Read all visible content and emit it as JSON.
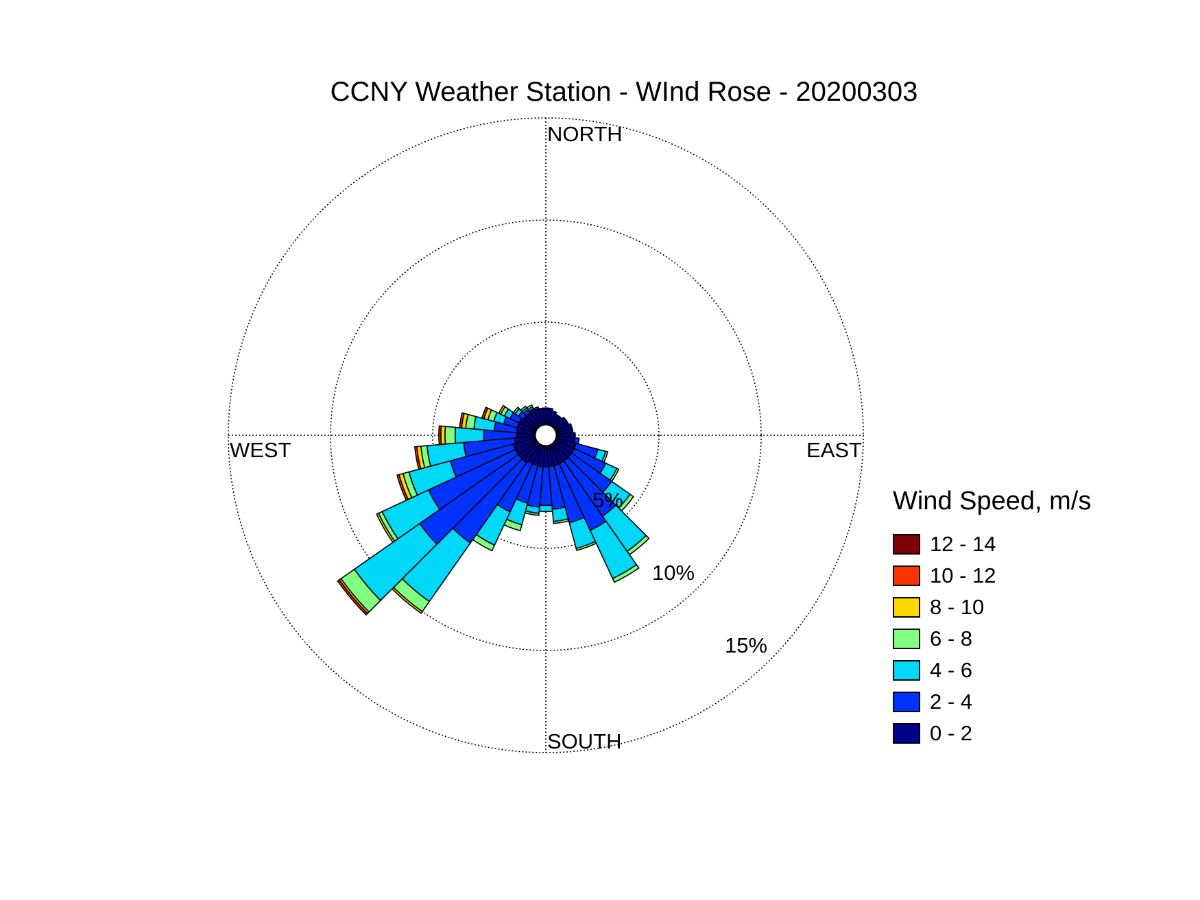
{
  "chart_data": {
    "type": "windrose",
    "title": "CCNY Weather Station - WInd Rose - 20200303",
    "direction_labels": {
      "north": "NORTH",
      "east": "EAST",
      "south": "SOUTH",
      "west": "WEST"
    },
    "radial_ticks": [
      5,
      10,
      15
    ],
    "radial_tick_labels": [
      "5%",
      "10%",
      "15%"
    ],
    "rmax": 15,
    "grid": true,
    "legend": {
      "title": "Wind Speed, m/s",
      "placement": "right",
      "bins": [
        {
          "label": "12 - 14",
          "color": "#800000"
        },
        {
          "label": "10 - 12",
          "color": "#ff3300"
        },
        {
          "label": "8 - 10",
          "color": "#ffd700"
        },
        {
          "label": "6 - 8",
          "color": "#80ff80"
        },
        {
          "label": "4 - 6",
          "color": "#00d8f8"
        },
        {
          "label": "2 - 4",
          "color": "#0033ff"
        },
        {
          "label": "0 - 2",
          "color": "#00008b"
        }
      ]
    },
    "bin_order_inner_to_outer": [
      "0 - 2",
      "2 - 4",
      "4 - 6",
      "6 - 8",
      "8 - 10",
      "10 - 12",
      "12 - 14"
    ],
    "sector_width_deg": 10,
    "sectors": [
      {
        "dir": 0,
        "values": [
          0.8,
          0,
          0,
          0,
          0,
          0,
          0
        ]
      },
      {
        "dir": 10,
        "values": [
          0.8,
          0,
          0,
          0,
          0,
          0,
          0
        ]
      },
      {
        "dir": 20,
        "values": [
          0.7,
          0,
          0,
          0,
          0,
          0,
          0
        ]
      },
      {
        "dir": 30,
        "values": [
          0.6,
          0,
          0,
          0,
          0,
          0,
          0
        ]
      },
      {
        "dir": 40,
        "values": [
          0.6,
          0,
          0,
          0,
          0,
          0,
          0
        ]
      },
      {
        "dir": 50,
        "values": [
          0.7,
          0,
          0,
          0,
          0,
          0,
          0
        ]
      },
      {
        "dir": 60,
        "values": [
          0.7,
          0,
          0,
          0,
          0,
          0,
          0
        ]
      },
      {
        "dir": 70,
        "values": [
          0.8,
          0,
          0,
          0,
          0,
          0,
          0
        ]
      },
      {
        "dir": 80,
        "values": [
          0.8,
          0,
          0,
          0,
          0,
          0,
          0
        ]
      },
      {
        "dir": 90,
        "values": [
          0.9,
          0,
          0,
          0,
          0,
          0,
          0
        ]
      },
      {
        "dir": 100,
        "values": [
          0.9,
          0.2,
          0,
          0,
          0,
          0,
          0
        ]
      },
      {
        "dir": 110,
        "values": [
          1.0,
          1.1,
          0.4,
          0.1,
          0,
          0,
          0
        ]
      },
      {
        "dir": 120,
        "values": [
          1.0,
          1.7,
          0.6,
          0.1,
          0,
          0,
          0
        ]
      },
      {
        "dir": 130,
        "values": [
          1.0,
          2.4,
          1.1,
          0.2,
          0,
          0,
          0
        ]
      },
      {
        "dir": 140,
        "values": [
          1.0,
          3.3,
          2.1,
          0.2,
          0,
          0,
          0
        ]
      },
      {
        "dir": 150,
        "values": [
          1.0,
          3.6,
          2.6,
          0.2,
          0,
          0,
          0
        ]
      },
      {
        "dir": 160,
        "values": [
          1.0,
          2.9,
          1.3,
          0.1,
          0,
          0,
          0
        ]
      },
      {
        "dir": 170,
        "values": [
          1.0,
          2.1,
          0.6,
          0.1,
          0,
          0,
          0
        ]
      },
      {
        "dir": 180,
        "values": [
          1.0,
          1.9,
          0.3,
          0,
          0,
          0,
          0
        ]
      },
      {
        "dir": 190,
        "values": [
          1.0,
          2.0,
          0.3,
          0.1,
          0,
          0,
          0
        ]
      },
      {
        "dir": 200,
        "values": [
          1.0,
          1.9,
          1.1,
          0.3,
          0,
          0,
          0
        ]
      },
      {
        "dir": 210,
        "values": [
          1.0,
          2.6,
          1.8,
          0.3,
          0,
          0,
          0
        ]
      },
      {
        "dir": 220,
        "values": [
          1.1,
          4.8,
          3.5,
          0.6,
          0.1,
          0,
          0
        ]
      },
      {
        "dir": 230,
        "values": [
          1.1,
          5.9,
          3.9,
          0.8,
          0.1,
          0.1,
          0
        ]
      },
      {
        "dir": 240,
        "values": [
          1.1,
          4.7,
          2.5,
          0.2,
          0.1,
          0,
          0
        ]
      },
      {
        "dir": 250,
        "values": [
          1.1,
          3.2,
          2.1,
          0.3,
          0.2,
          0.1,
          0
        ]
      },
      {
        "dir": 260,
        "values": [
          1.0,
          2.5,
          1.8,
          0.3,
          0.2,
          0.1,
          0
        ]
      },
      {
        "dir": 270,
        "values": [
          0.9,
          1.6,
          1.4,
          0.5,
          0.2,
          0.1,
          0
        ]
      },
      {
        "dir": 280,
        "values": [
          0.9,
          1.1,
          1.0,
          0.4,
          0.2,
          0.1,
          0
        ]
      },
      {
        "dir": 290,
        "values": [
          0.9,
          0.7,
          0.5,
          0.3,
          0.2,
          0.1,
          0
        ]
      },
      {
        "dir": 300,
        "values": [
          0.9,
          0.5,
          0.3,
          0.2,
          0.1,
          0,
          0
        ]
      },
      {
        "dir": 310,
        "values": [
          0.8,
          0.3,
          0.2,
          0.1,
          0,
          0,
          0
        ]
      },
      {
        "dir": 320,
        "values": [
          0.8,
          0.2,
          0.1,
          0.1,
          0,
          0,
          0
        ]
      },
      {
        "dir": 330,
        "values": [
          0.8,
          0.1,
          0.1,
          0.1,
          0,
          0,
          0
        ]
      },
      {
        "dir": 340,
        "values": [
          0.8,
          0.1,
          0,
          0,
          0,
          0,
          0
        ]
      },
      {
        "dir": 350,
        "values": [
          0.8,
          0,
          0,
          0,
          0,
          0,
          0
        ]
      }
    ]
  }
}
